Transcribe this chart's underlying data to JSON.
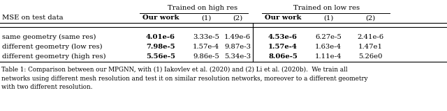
{
  "title_left": "MSE on test data",
  "header_group1": "Trained on high res",
  "header_group2": "Trained on low res",
  "col_headers": [
    "Our work",
    "(1)",
    "(2)",
    "Our work",
    "(1)",
    "(2)"
  ],
  "row_labels": [
    "same geometry (same res)",
    "different geometry (low res)",
    "different geometry (high res)"
  ],
  "data": [
    [
      "4.01e-6",
      "3.33e-5",
      "1.49e-6",
      "4.53e-6",
      "6.27e-5",
      "2.41e-6"
    ],
    [
      "7.98e-5",
      "1.57e-4",
      "9.87e-3",
      "1.57e-4",
      "1.63e-4",
      "1.47e1"
    ],
    [
      "5.56e-5",
      "9.86e-5",
      "5.34e-3",
      "8.06e-5",
      "1.11e-4",
      "5.26e0"
    ]
  ],
  "bold_cols": [
    0,
    3
  ],
  "caption": "Table 1: Comparison between our MPGNN, with (1) Iakovlev et al. (2020) and (2) Li et al. (2020b).  We train all\nnetworks using different mesh resolution and test it on similar resolution networks, moreover to a different geometry\nwith two different resolution.",
  "bg_color": "#ffffff",
  "text_color": "#000000",
  "fontsize": 7.2,
  "caption_fontsize": 6.3
}
